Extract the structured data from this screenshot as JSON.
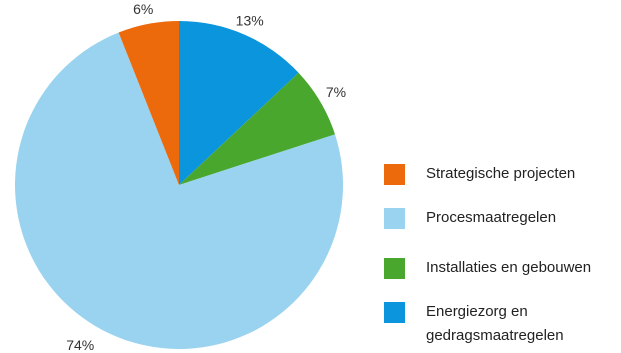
{
  "chart_data": {
    "type": "pie",
    "start_angle_deg": 0,
    "direction": "clockwise",
    "slices": [
      {
        "label": "Energiezorg en gedragsmaatregelen",
        "value": 13,
        "value_label": "13%",
        "color": "#0a95dc"
      },
      {
        "label": "Installaties en gebouwen",
        "value": 7,
        "value_label": "7%",
        "color": "#4aa72e"
      },
      {
        "label": "Procesmaatregelen",
        "value": 74,
        "value_label": "74%",
        "color": "#99d3ef"
      },
      {
        "label": "Strategische projecten",
        "value": 6,
        "value_label": "6%",
        "color": "#ec6a0c"
      }
    ],
    "legend": {
      "position": "right",
      "entries": [
        {
          "label": "Strategische projecten",
          "color": "#ec6a0c"
        },
        {
          "label": "Procesmaatregelen",
          "color": "#99d3ef"
        },
        {
          "label": "Installaties en gebouwen",
          "color": "#4aa72e"
        },
        {
          "label": "Energiezorg en gedragsmaatregelen",
          "color": "#0a95dc"
        }
      ]
    }
  }
}
